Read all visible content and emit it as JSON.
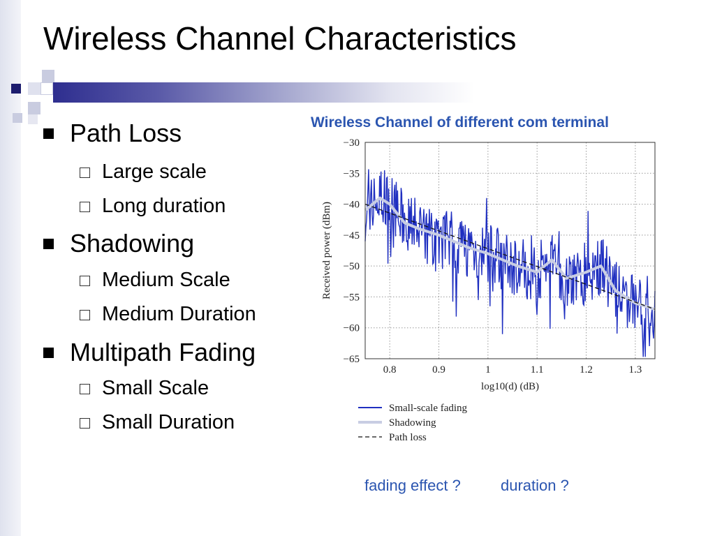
{
  "slide": {
    "title": "Wireless Channel Characteristics",
    "bullets": [
      {
        "label": "Path Loss",
        "sub": [
          "Large scale",
          "Long duration"
        ]
      },
      {
        "label": "Shadowing",
        "sub": [
          "Medium Scale",
          "Medium Duration"
        ]
      },
      {
        "label": "Multipath Fading",
        "sub": [
          "Small Scale",
          "Small Duration"
        ]
      }
    ],
    "chart_caption": "Wireless Channel of different com terminal",
    "notes": [
      "fading effect ?",
      "duration ?"
    ],
    "colors": {
      "accent": "#2b55b0",
      "bar_dark": "#2e2e8f",
      "fading": "#1f2fc0",
      "shadowing": "#c8cde3"
    }
  },
  "chart_data": {
    "type": "line",
    "xlabel": "log10(d) (dB)",
    "ylabel": "Received power (dBm)",
    "xlim": [
      0.75,
      1.34
    ],
    "ylim": [
      -65,
      -30
    ],
    "xticks": [
      0.8,
      0.9,
      1,
      1.1,
      1.2,
      1.3
    ],
    "yticks": [
      -30,
      -35,
      -40,
      -45,
      -50,
      -55,
      -60,
      -65
    ],
    "xtick_labels": [
      "0.8",
      "0.9",
      "1",
      "1.1",
      "1.2",
      "1.3"
    ],
    "ytick_labels": [
      "−30",
      "−35",
      "−40",
      "−45",
      "−50",
      "−55",
      "−60",
      "−65"
    ],
    "grid": true,
    "legend_position": "below",
    "series": [
      {
        "name": "Small-scale fading",
        "style": "solid-dark-blue",
        "x_range": [
          0.75,
          1.34
        ],
        "mean_offset_db": 0,
        "approx_swing_db": 10
      },
      {
        "name": "Shadowing",
        "style": "thick-light",
        "x": [
          0.75,
          0.78,
          0.8,
          0.83,
          0.86,
          0.9,
          0.93,
          0.96,
          1.0,
          1.03,
          1.06,
          1.1,
          1.13,
          1.16,
          1.2,
          1.23,
          1.26,
          1.3,
          1.34
        ],
        "y": [
          -41,
          -39,
          -40,
          -43,
          -44,
          -45,
          -46,
          -47,
          -48,
          -49,
          -50,
          -51,
          -49,
          -52,
          -51,
          -50,
          -54,
          -56,
          -57
        ]
      },
      {
        "name": "Path loss",
        "style": "dashed-black",
        "x": [
          0.75,
          1.34
        ],
        "y": [
          -40,
          -57
        ]
      }
    ]
  }
}
